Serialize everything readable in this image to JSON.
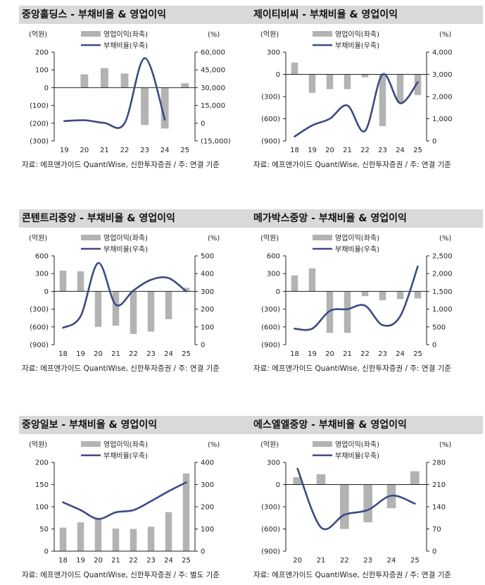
{
  "panels": [
    {
      "title": "중앙홀딩스 - 부채비율 & 영업이익",
      "source": "자료: 에프앤가이드 QuantiWise, 신한투자증권 / 주: 연결 기준",
      "chart_data": {
        "type": "bar+line",
        "left_unit": "(억원)",
        "right_unit": "(%)",
        "categories": [
          "19",
          "20",
          "21",
          "22",
          "23",
          "24",
          "25"
        ],
        "left_ticks": [
          "200",
          "100",
          "0",
          "(100)",
          "(200)",
          "(300)"
        ],
        "right_ticks": [
          "60,000",
          "45,000",
          "30,000",
          "15,000",
          "0",
          "(15,000)"
        ],
        "ylim_left": [
          -300,
          200
        ],
        "ylim_right": [
          -15000,
          60000
        ],
        "bar_series": {
          "name": "영업이익(좌축)",
          "values": [
            75,
            110,
            80,
            -210,
            -230,
            25
          ]
        },
        "bar_indices": [
          1,
          2,
          3,
          4,
          5,
          6
        ],
        "line_series": {
          "name": "부채비율(우축)",
          "values": [
            1800,
            2500,
            200,
            0,
            55000,
            3000
          ]
        }
      }
    },
    {
      "title": "제이티비씨 - 부채비율 & 영업이익",
      "source": "자료: 에프앤가이드 QuantiWise, 신한투자증권 / 주: 연결 기준",
      "chart_data": {
        "type": "bar+line",
        "left_unit": "(억원)",
        "right_unit": "(%)",
        "categories": [
          "18",
          "19",
          "20",
          "21",
          "22",
          "23",
          "24",
          "25"
        ],
        "left_ticks": [
          "300",
          "0",
          "(300)",
          "(600)",
          "(900)"
        ],
        "right_ticks": [
          "4,000",
          "3,000",
          "2,000",
          "1,000",
          "0"
        ],
        "ylim_left": [
          -900,
          300
        ],
        "ylim_right": [
          0,
          4000
        ],
        "bar_series": {
          "name": "영업이익(좌축)",
          "values": [
            160,
            -250,
            -200,
            -200,
            -40,
            -700,
            -380,
            -280
          ]
        },
        "bar_indices": [
          0,
          1,
          2,
          3,
          4,
          5,
          6,
          7
        ],
        "line_series": {
          "name": "부채비율(우축)",
          "values": [
            200,
            700,
            1000,
            1600,
            450,
            3000,
            1700,
            2650
          ]
        }
      }
    },
    {
      "title": "콘텐트리중앙 - 부채비율 & 영업이익",
      "source": "자료: 에프앤가이드 QuantiWise, 신한투자증권 / 주: 연결 기준",
      "chart_data": {
        "type": "bar+line",
        "left_unit": "(억원)",
        "right_unit": "(%)",
        "categories": [
          "18",
          "19",
          "20",
          "21",
          "22",
          "23",
          "24",
          "25"
        ],
        "left_ticks": [
          "600",
          "300",
          "0",
          "(300)",
          "(600)",
          "(900)"
        ],
        "right_ticks": [
          "500",
          "400",
          "300",
          "200",
          "100",
          "0"
        ],
        "ylim_left": [
          -900,
          600
        ],
        "ylim_right": [
          0,
          500
        ],
        "bar_series": {
          "name": "영업이익(좌축)",
          "values": [
            350,
            340,
            -600,
            -580,
            -720,
            -680,
            -470,
            60
          ]
        },
        "bar_indices": [
          0,
          1,
          2,
          3,
          4,
          5,
          6,
          7
        ],
        "line_series": {
          "name": "부채비율(우축)",
          "values": [
            95,
            160,
            460,
            225,
            305,
            365,
            375,
            300
          ]
        }
      }
    },
    {
      "title": "메가박스중앙 - 부채비율 & 영업이익",
      "source": "자료: 에프앤가이드 QuantiWise, 신한투자증권 / 주: 연결 기준",
      "chart_data": {
        "type": "bar+line",
        "left_unit": "(억원)",
        "right_unit": "(%)",
        "categories": [
          "18",
          "19",
          "20",
          "21",
          "22",
          "23",
          "24",
          "25"
        ],
        "left_ticks": [
          "600",
          "300",
          "0",
          "(300)",
          "(600)",
          "(900)"
        ],
        "right_ticks": [
          "2,500",
          "2,000",
          "1,500",
          "1,000",
          "500",
          "0"
        ],
        "ylim_left": [
          -900,
          600
        ],
        "ylim_right": [
          0,
          2500
        ],
        "bar_series": {
          "name": "영업이익(좌축)",
          "values": [
            270,
            390,
            -700,
            -700,
            -80,
            -150,
            -130,
            -120
          ]
        },
        "bar_indices": [
          0,
          1,
          2,
          3,
          4,
          5,
          6,
          7
        ],
        "line_series": {
          "name": "부채비율(우축)",
          "values": [
            450,
            450,
            950,
            1000,
            1100,
            550,
            800,
            2200
          ]
        }
      }
    },
    {
      "title": "중앙일보 - 부채비율 & 영업이익",
      "source": "자료: 에프앤가이드 QuantiWise, 신한투자증권 / 주: 별도 기준",
      "chart_data": {
        "type": "bar+line",
        "left_unit": "(억원)",
        "right_unit": "(%)",
        "categories": [
          "18",
          "19",
          "20",
          "21",
          "22",
          "23",
          "24",
          "25"
        ],
        "left_ticks": [
          "200",
          "150",
          "100",
          "50",
          "0"
        ],
        "right_ticks": [
          "400",
          "300",
          "200",
          "100",
          "0"
        ],
        "ylim_left": [
          0,
          200
        ],
        "ylim_right": [
          0,
          400
        ],
        "bar_series": {
          "name": "영업이익(좌축)",
          "values": [
            53,
            65,
            72,
            51,
            50,
            55,
            88,
            175
          ]
        },
        "bar_indices": [
          0,
          1,
          2,
          3,
          4,
          5,
          6,
          7
        ],
        "line_series": {
          "name": "부채비율(우축)",
          "values": [
            220,
            185,
            145,
            175,
            185,
            225,
            270,
            310
          ]
        }
      }
    },
    {
      "title": "에스엘엘중앙 - 부채비율 & 영업이익",
      "source": "자료: 에프앤가이드 QuantiWise, 신한투자증권 / 주: 연결 기준",
      "chart_data": {
        "type": "bar+line",
        "left_unit": "(억원)",
        "right_unit": "(%)",
        "categories": [
          "20",
          "21",
          "22",
          "23",
          "24",
          "25"
        ],
        "left_ticks": [
          "300",
          "0",
          "(300)",
          "(600)",
          "(900)"
        ],
        "right_ticks": [
          "280",
          "210",
          "140",
          "70",
          "0"
        ],
        "ylim_left": [
          -900,
          300
        ],
        "ylim_right": [
          0,
          280
        ],
        "bar_series": {
          "name": "영업이익(좌축)",
          "values": [
            100,
            140,
            -600,
            -510,
            -320,
            180
          ]
        },
        "bar_indices": [
          0,
          1,
          2,
          3,
          4,
          5
        ],
        "line_series": {
          "name": "부채비율(우축)",
          "values": [
            260,
            75,
            115,
            130,
            175,
            150
          ]
        }
      }
    }
  ]
}
